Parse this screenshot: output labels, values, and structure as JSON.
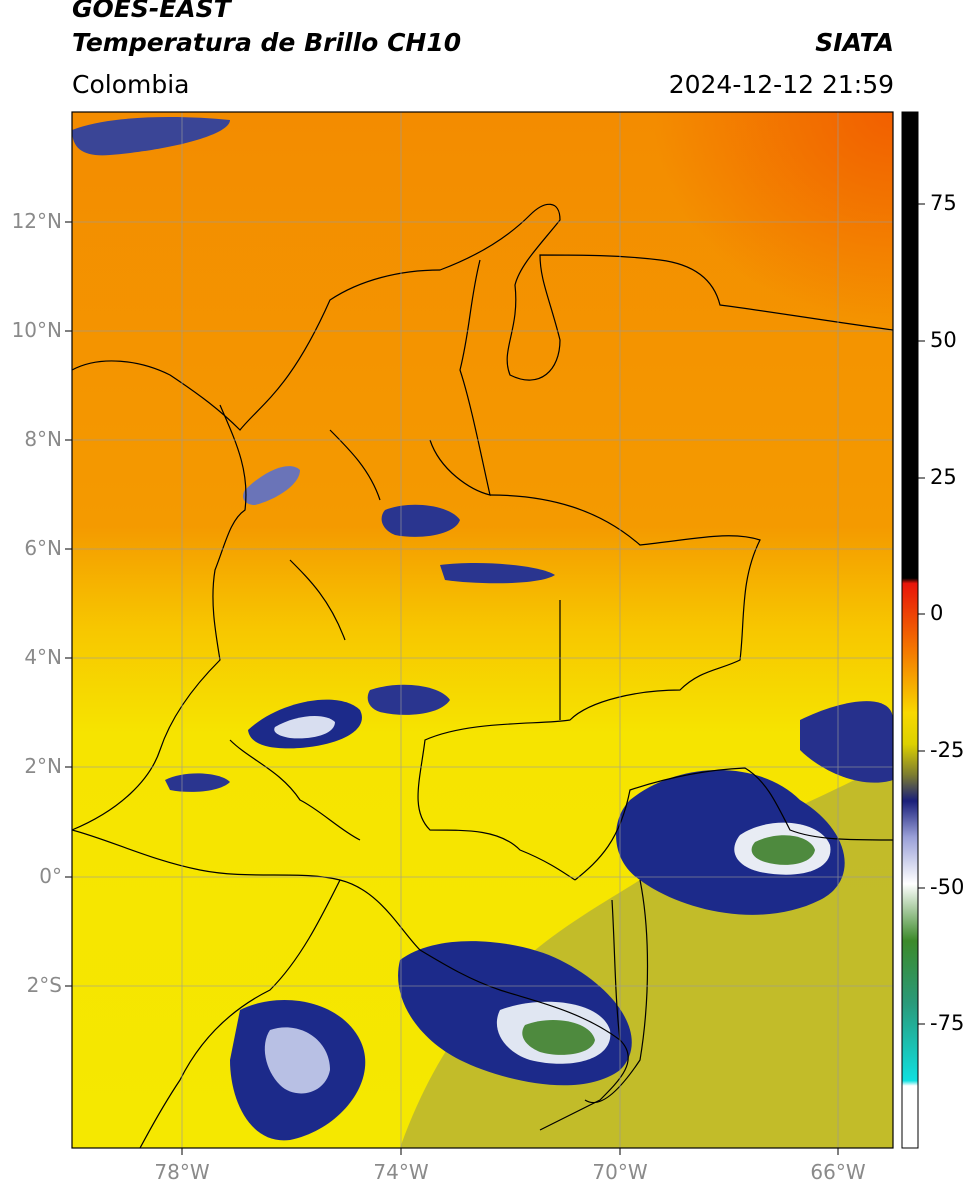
{
  "header": {
    "satellite": "GOES-EAST",
    "product": "Temperatura de Brillo CH10",
    "region": "Colombia",
    "source": "SIATA",
    "datetime": "2024-12-12 21:59"
  },
  "map": {
    "extent": {
      "lon_min": -80,
      "lon_max": -65,
      "lat_min": -5,
      "lat_max": 14
    },
    "lat_ticks": [
      {
        "value": 12,
        "label": "12°N"
      },
      {
        "value": 10,
        "label": "10°N"
      },
      {
        "value": 8,
        "label": "8°N"
      },
      {
        "value": 6,
        "label": "6°N"
      },
      {
        "value": 4,
        "label": "4°N"
      },
      {
        "value": 2,
        "label": "2°N"
      },
      {
        "value": 0,
        "label": "0°"
      },
      {
        "value": -2,
        "label": "2°S"
      }
    ],
    "lon_ticks": [
      {
        "value": -78,
        "label": "78°W"
      },
      {
        "value": -74,
        "label": "74°W"
      },
      {
        "value": -70,
        "label": "70°W"
      },
      {
        "value": -66,
        "label": "66°W"
      }
    ],
    "grid": true,
    "colors": {
      "warm_north": "#f18c00",
      "warm_south": "#f7e600",
      "cold_core": "#1c2a8a",
      "very_cold": "#4a8a3c",
      "border": "#000000",
      "grid": "#9a9a9a"
    }
  },
  "colorbar": {
    "range": [
      -95,
      90
    ],
    "ticks": [
      {
        "value": 75,
        "label": "75"
      },
      {
        "value": 50,
        "label": "50"
      },
      {
        "value": 25,
        "label": "25"
      },
      {
        "value": 0,
        "label": "0"
      },
      {
        "value": -25,
        "label": "-25"
      },
      {
        "value": -50,
        "label": "-50"
      },
      {
        "value": -75,
        "label": "-75"
      }
    ]
  }
}
